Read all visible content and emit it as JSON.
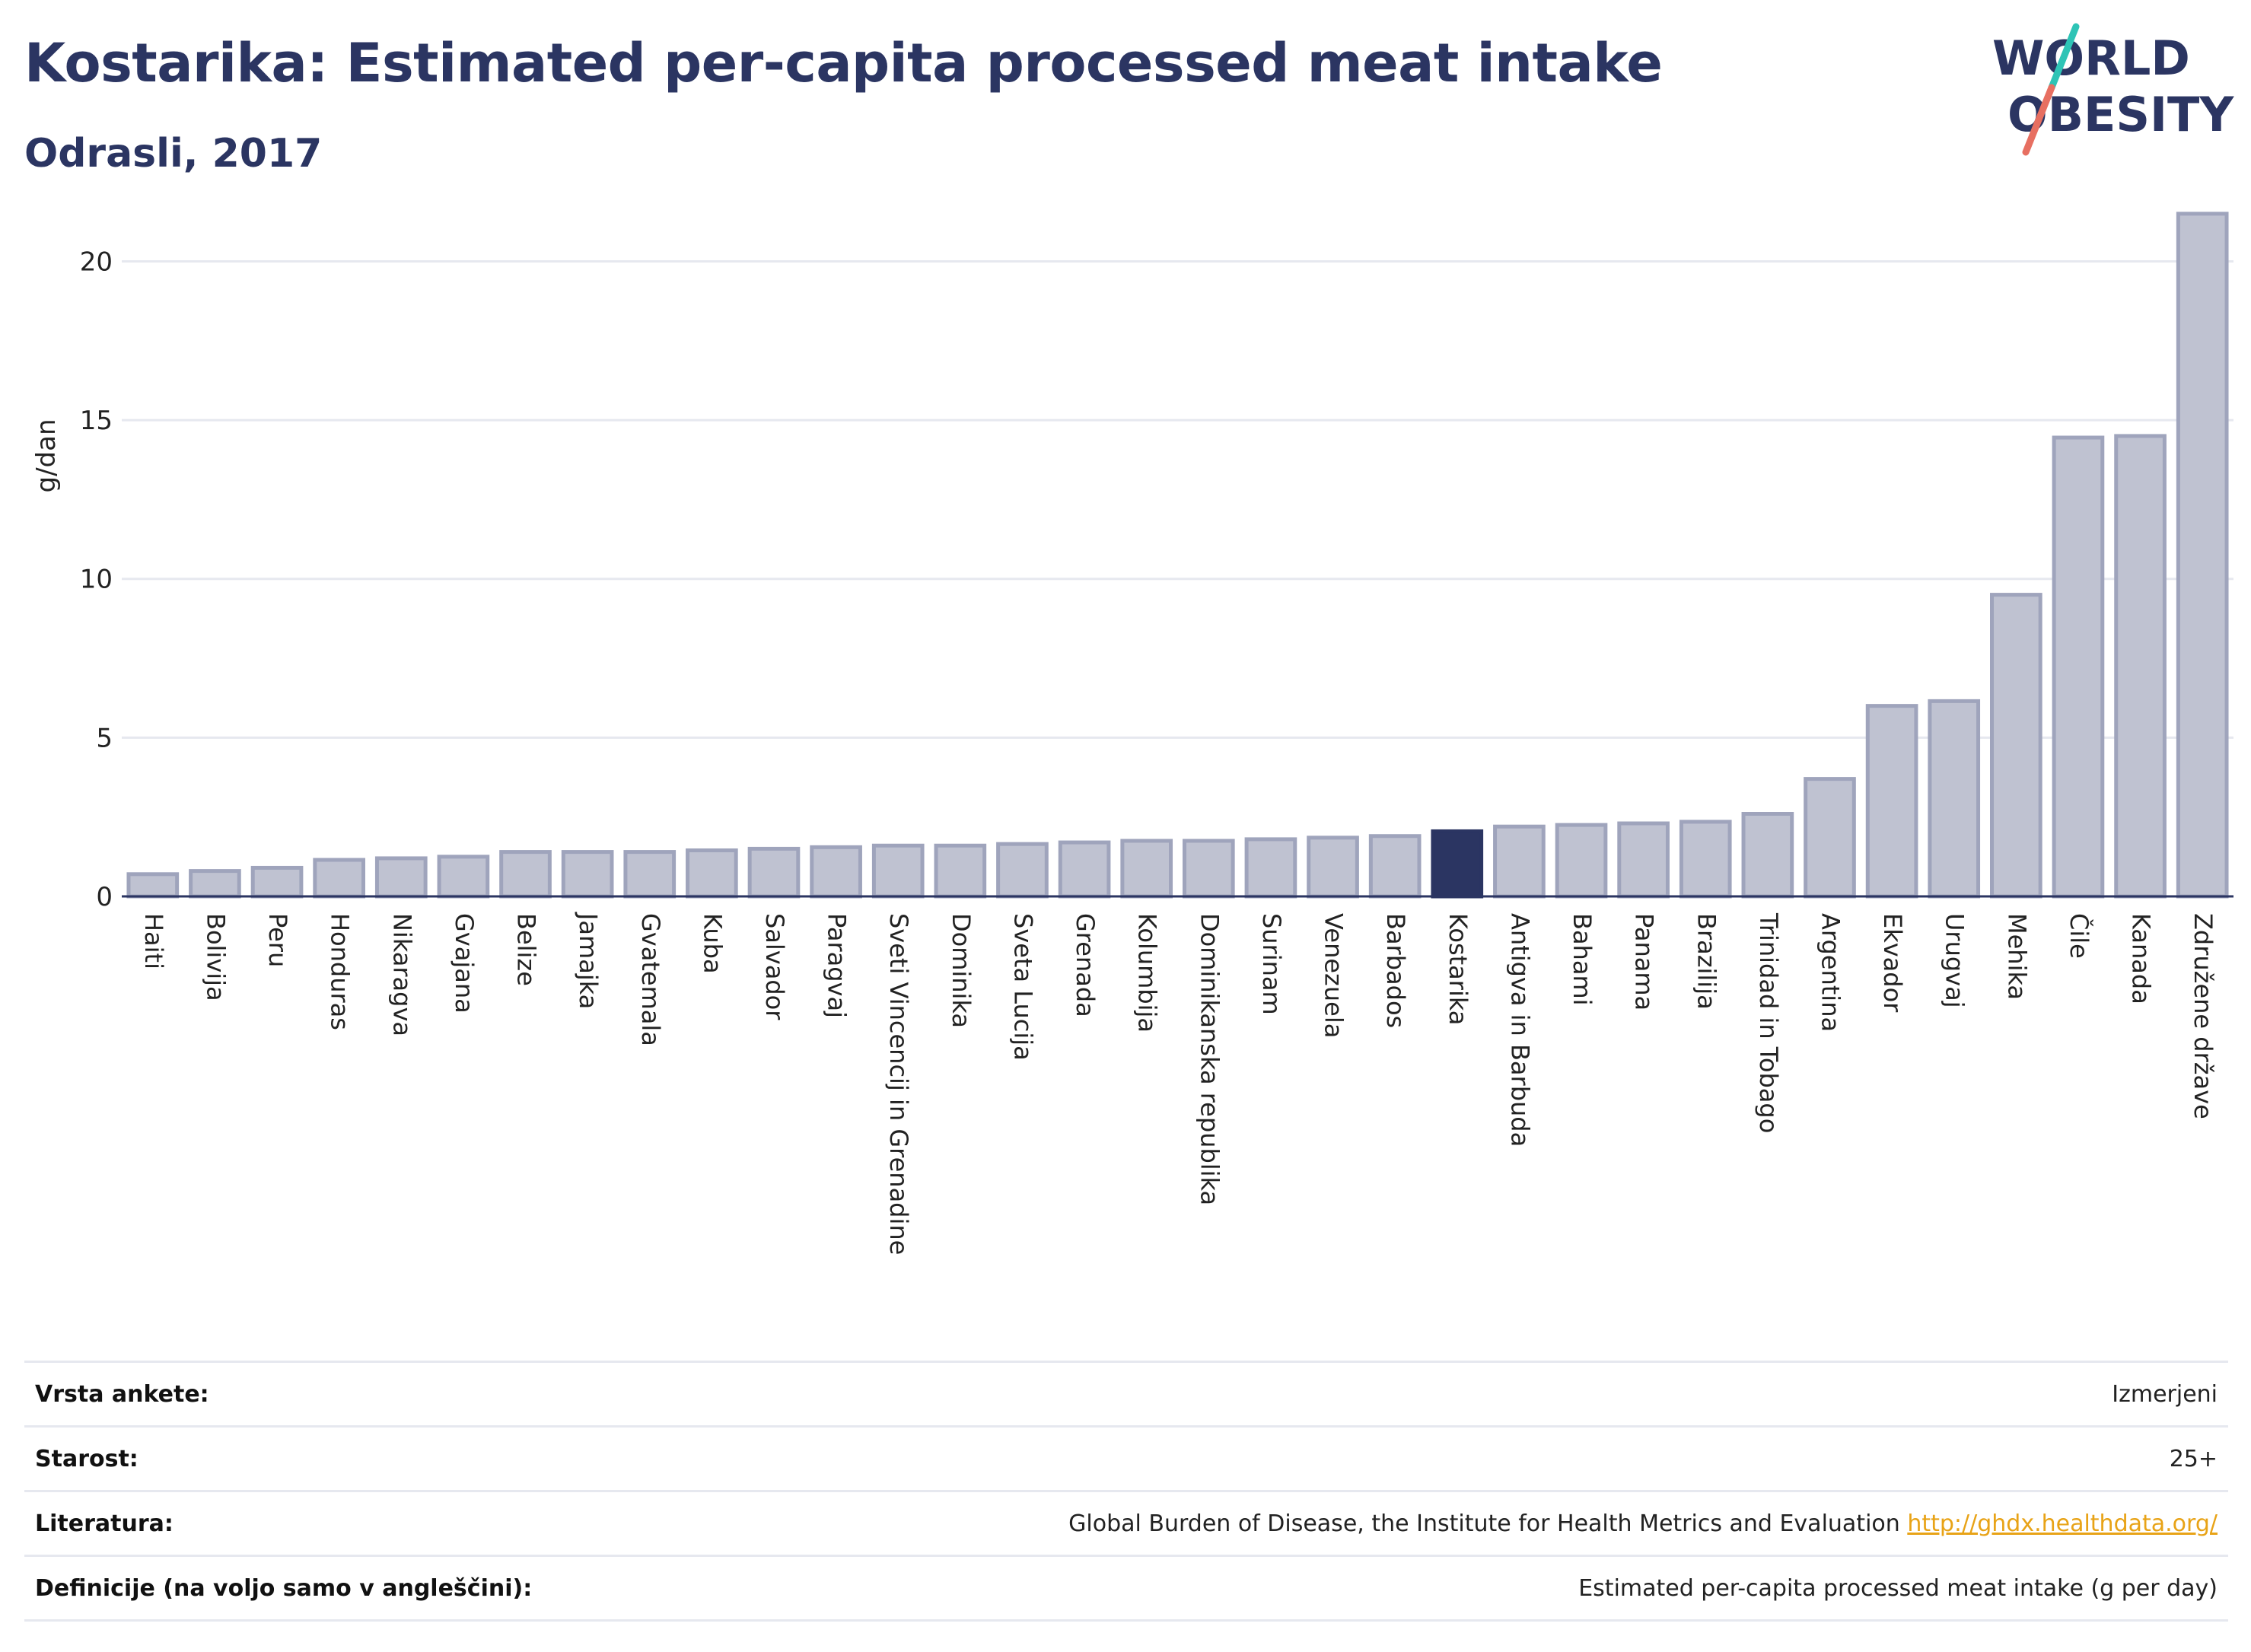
{
  "header": {
    "title": "Kostarika: Estimated per-capita processed meat intake",
    "subtitle": "Odrasli, 2017"
  },
  "logo": {
    "line1": "WORLD",
    "line2": "OBESITY"
  },
  "colors": {
    "title": "#2b3562",
    "bar_default": "#bfc2d1",
    "bar_border": "#9fa4bc",
    "bar_highlight": "#2b3562",
    "logo_teal": "#2ec4b6",
    "logo_coral": "#e76f61",
    "link": "#e8a317"
  },
  "chart_data": {
    "type": "bar",
    "title": "Kostarika: Estimated per-capita processed meat intake",
    "subtitle": "Odrasli, 2017",
    "ylabel": "g/dan",
    "xlabel": "",
    "ylim": [
      0,
      22
    ],
    "yticks": [
      0,
      5,
      10,
      15,
      20
    ],
    "grid": true,
    "highlight": "Kostarika",
    "categories": [
      "Haiti",
      "Bolivija",
      "Peru",
      "Honduras",
      "Nikaragva",
      "Gvajana",
      "Belize",
      "Jamajka",
      "Gvatemala",
      "Kuba",
      "Salvador",
      "Paragvaj",
      "Sveti Vincencij in Grenadine",
      "Dominika",
      "Sveta Lucija",
      "Grenada",
      "Kolumbija",
      "Dominikanska republika",
      "Surinam",
      "Venezuela",
      "Barbados",
      "Kostarika",
      "Antigva in Barbuda",
      "Bahami",
      "Panama",
      "Brazilija",
      "Trinidad in Tobago",
      "Argentina",
      "Ekvador",
      "Urugvaj",
      "Mehika",
      "Čile",
      "Kanada",
      "Združene države"
    ],
    "values": [
      0.7,
      0.8,
      0.9,
      1.15,
      1.2,
      1.25,
      1.4,
      1.4,
      1.4,
      1.45,
      1.5,
      1.55,
      1.6,
      1.6,
      1.65,
      1.7,
      1.75,
      1.75,
      1.8,
      1.85,
      1.9,
      2.05,
      2.2,
      2.25,
      2.3,
      2.35,
      2.6,
      3.7,
      6.0,
      6.15,
      9.5,
      14.45,
      14.5,
      21.5
    ]
  },
  "metadata_table": [
    {
      "label": "Vrsta ankete:",
      "value": "Izmerjeni"
    },
    {
      "label": "Starost:",
      "value": "25+"
    },
    {
      "label": "Literatura:",
      "value": "Global Burden of Disease, the Institute for Health Metrics and Evaluation ",
      "link": "http://ghdx.healthdata.org/"
    },
    {
      "label": "Definicije (na voljo samo v angleščini):",
      "value": "Estimated per-capita processed meat intake (g per day)"
    }
  ]
}
